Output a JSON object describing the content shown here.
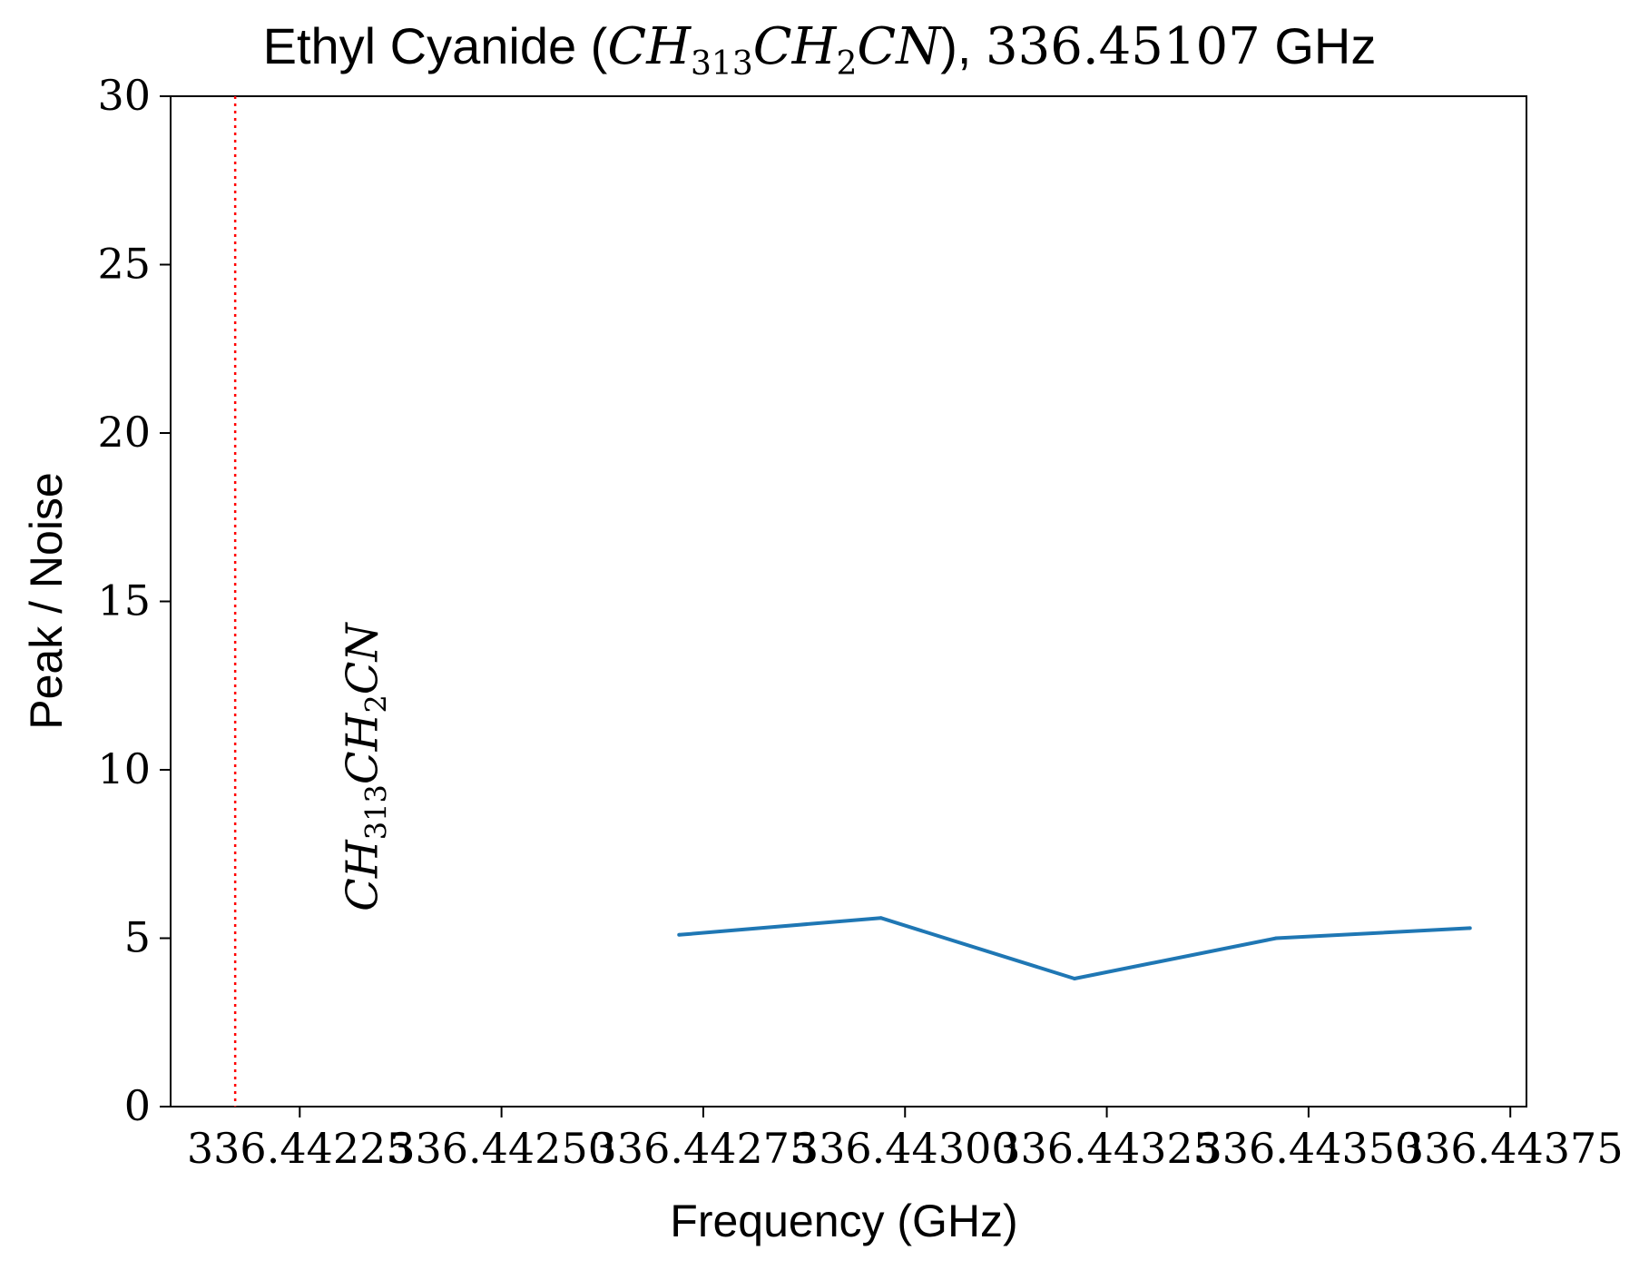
{
  "chart_data": {
    "type": "line",
    "title": {
      "prefix": "Ethyl Cyanide (",
      "formula": {
        "a": "CH",
        "sub1": "313",
        "b": "CH",
        "sub2": "2",
        "c": "CN"
      },
      "suffix_sep": "), ",
      "freq": "336.45107",
      "unit": " GHz"
    },
    "xlabel": "Frequency (GHz)",
    "ylabel": "Peak / Noise",
    "xlim": [
      336.44209,
      336.44377
    ],
    "ylim": [
      0,
      30
    ],
    "x_ticks": [
      336.44225,
      336.4425,
      336.44275,
      336.443,
      336.44325,
      336.4435,
      336.44375
    ],
    "x_tick_labels": [
      "336.44225",
      "336.44250",
      "336.44275",
      "336.44300",
      "336.44325",
      "336.44350",
      "336.44375"
    ],
    "y_ticks": [
      0,
      5,
      10,
      15,
      20,
      25,
      30
    ],
    "y_tick_labels": [
      "0",
      "5",
      "10",
      "15",
      "20",
      "25",
      "30"
    ],
    "series": [
      {
        "x": [
          336.44272,
          336.44297,
          336.44321,
          336.44346,
          336.4437
        ],
        "y": [
          5.1,
          5.6,
          3.8,
          5.0,
          5.3
        ],
        "color": "#1f77b4"
      }
    ],
    "marker_line": {
      "x": 336.44217,
      "color": "#ff0000",
      "style": "dotted"
    },
    "annotation": {
      "formula": {
        "a": "CH",
        "sub1": "313",
        "b": "CH",
        "sub2": "2",
        "c": "CN"
      },
      "x": 336.44233,
      "y": 5.8,
      "rotation": "vertical"
    },
    "grid": false,
    "legend": "none"
  }
}
